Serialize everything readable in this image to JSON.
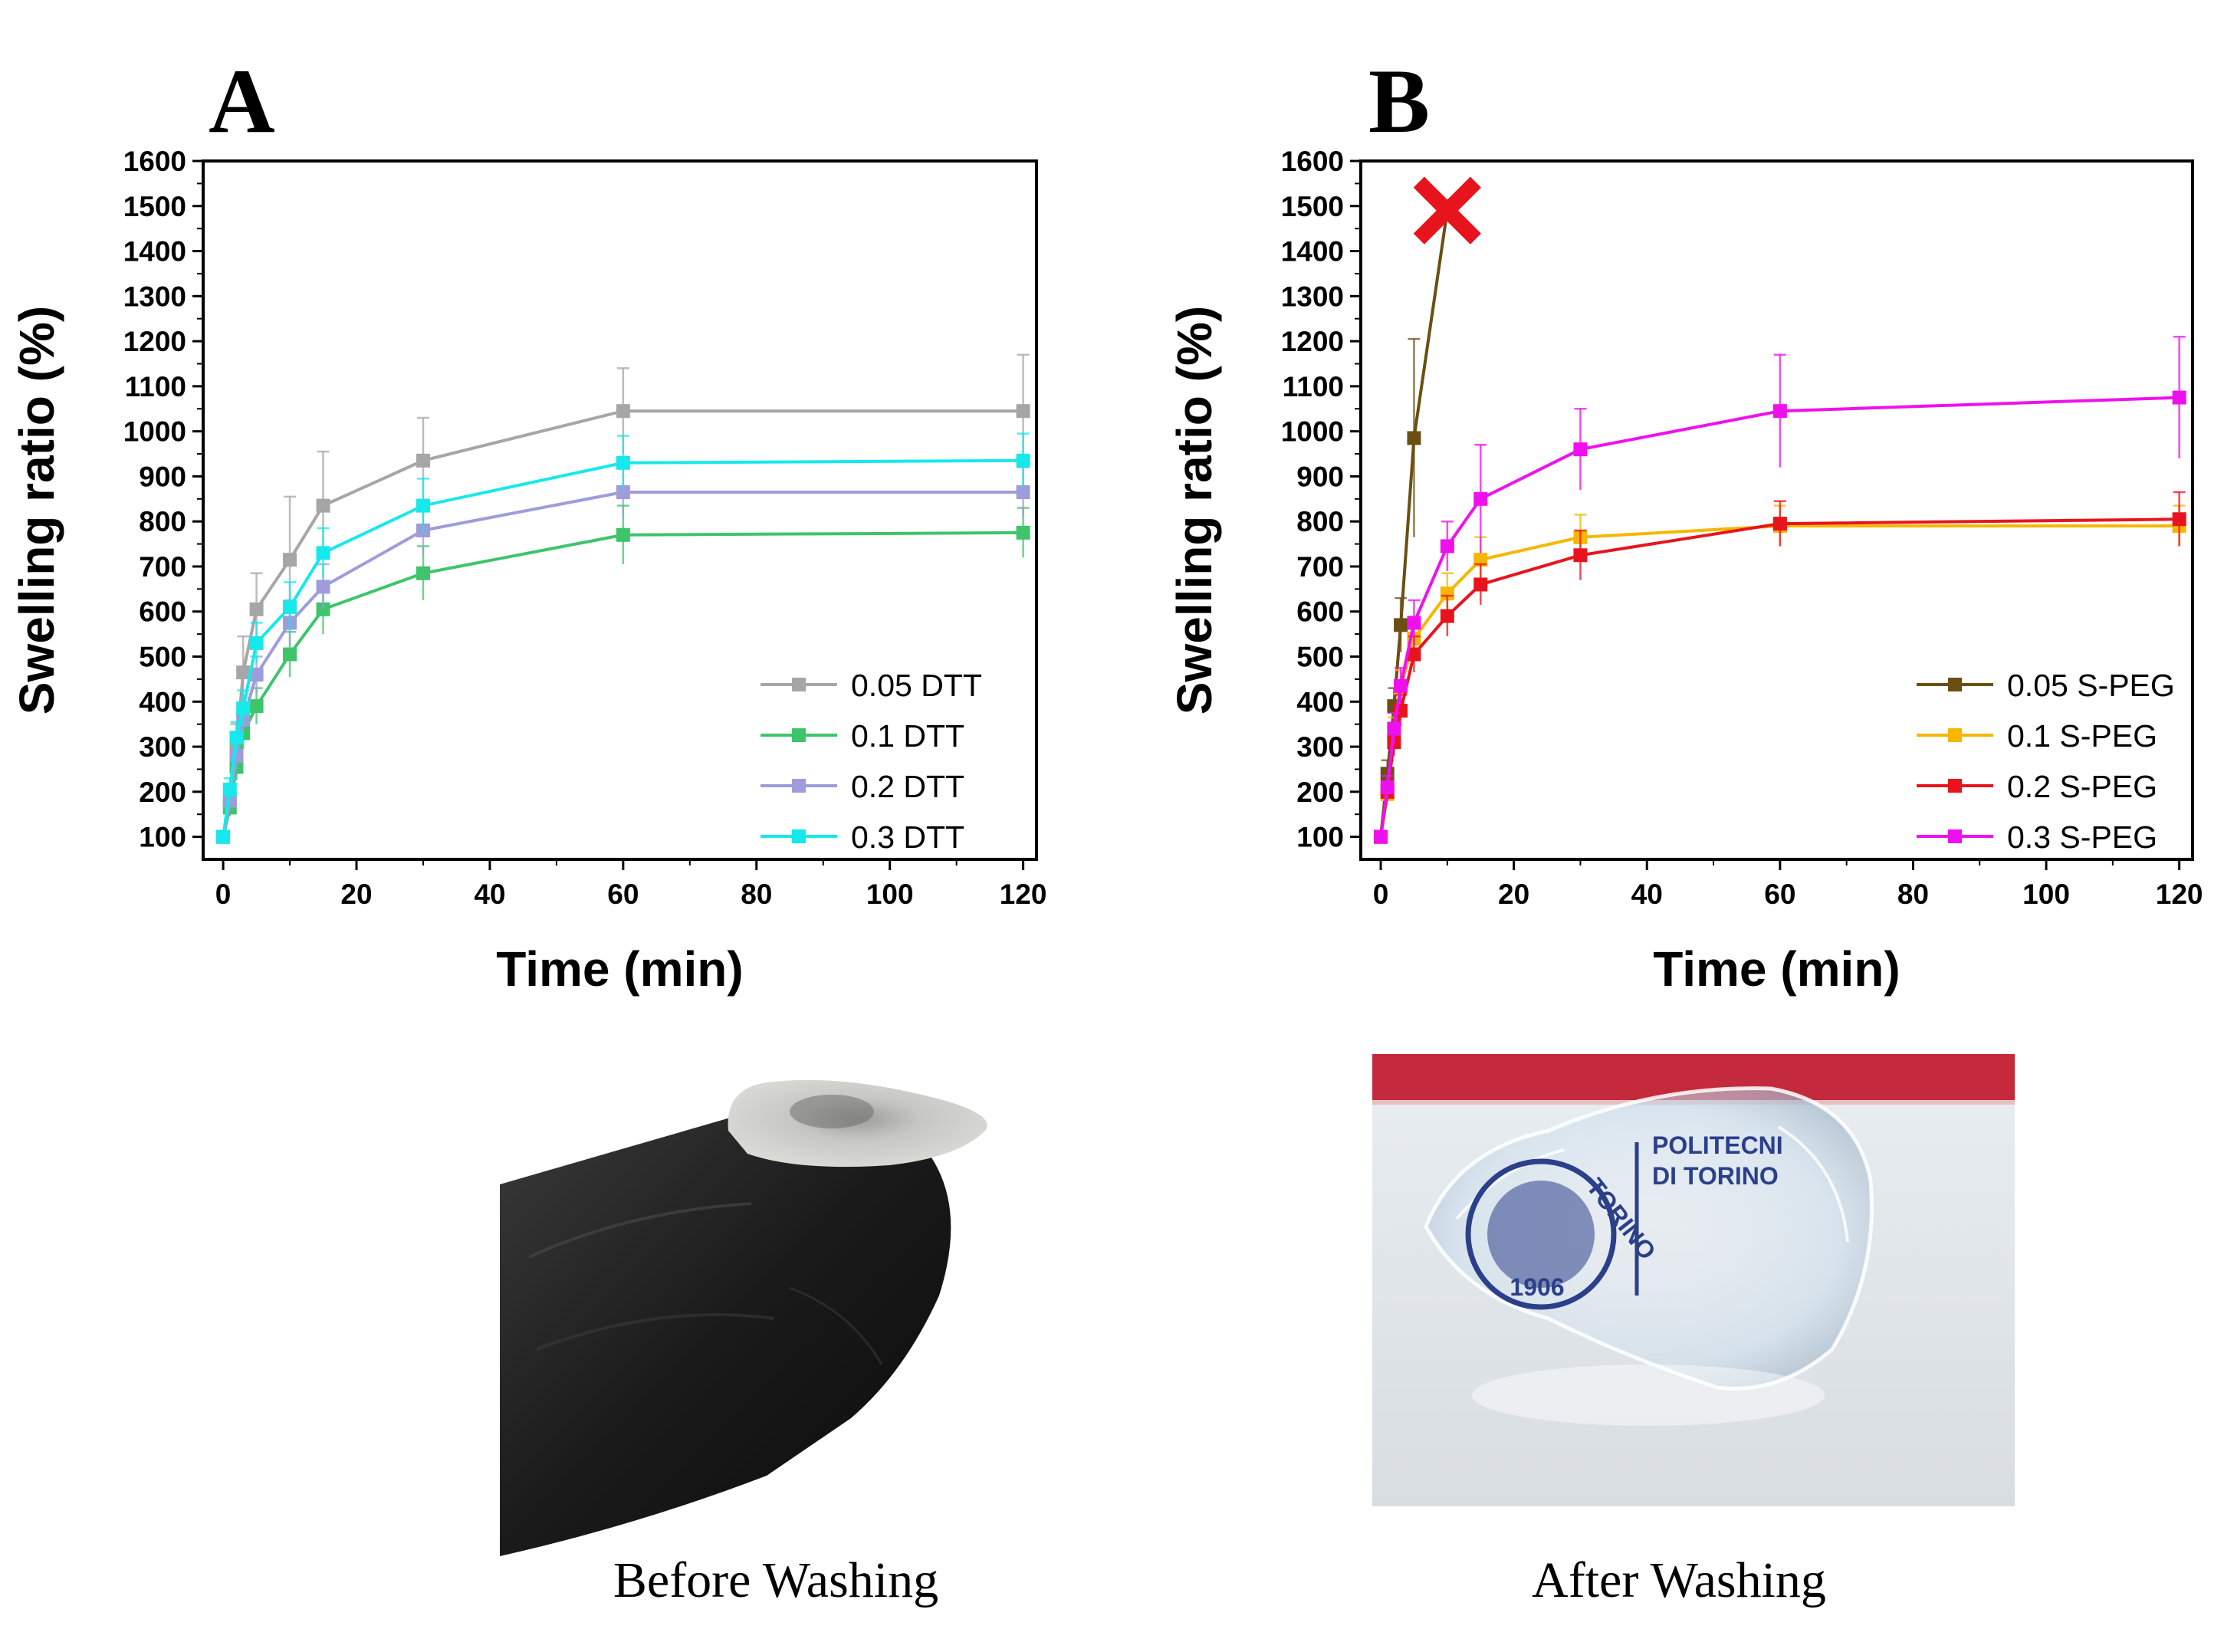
{
  "chart_data": [
    {
      "type": "line",
      "panel": "A",
      "xlabel": "Time (min)",
      "ylabel": "Swelling ratio (%)",
      "xlim": [
        -3,
        122
      ],
      "ylim": [
        50,
        1600
      ],
      "xticks": [
        0,
        20,
        40,
        60,
        80,
        100,
        120
      ],
      "yticks": [
        100,
        200,
        300,
        400,
        500,
        600,
        700,
        800,
        900,
        1000,
        1100,
        1200,
        1300,
        1400,
        1500,
        1600
      ],
      "legend_position": "bottom-right",
      "x": [
        0,
        1,
        2,
        3,
        5,
        10,
        15,
        30,
        60,
        120
      ],
      "series": [
        {
          "name": "0.05 DTT",
          "color": "#a6a6a6",
          "values": [
            100,
            180,
            300,
            465,
            605,
            715,
            835,
            935,
            1045,
            1045
          ],
          "errors": [
            0,
            30,
            50,
            80,
            80,
            140,
            120,
            95,
            95,
            125
          ]
        },
        {
          "name": "0.1 DTT",
          "color": "#3ec46b",
          "values": [
            100,
            165,
            255,
            330,
            390,
            505,
            605,
            685,
            770,
            775
          ],
          "errors": [
            0,
            20,
            30,
            35,
            40,
            50,
            55,
            60,
            65,
            55
          ]
        },
        {
          "name": "0.2 DTT",
          "color": "#9e9cdb",
          "values": [
            100,
            180,
            280,
            360,
            460,
            575,
            655,
            780,
            865,
            865
          ],
          "errors": [
            0,
            20,
            30,
            35,
            40,
            50,
            50,
            55,
            55,
            55
          ]
        },
        {
          "name": "0.3 DTT",
          "color": "#17e8ec",
          "values": [
            100,
            205,
            320,
            385,
            530,
            610,
            730,
            835,
            930,
            935
          ],
          "errors": [
            0,
            25,
            35,
            40,
            45,
            55,
            55,
            60,
            60,
            60
          ]
        }
      ]
    },
    {
      "type": "line",
      "panel": "B",
      "xlabel": "Time (min)",
      "ylabel": "Swelling ratio (%)",
      "xlim": [
        -3,
        122
      ],
      "ylim": [
        50,
        1600
      ],
      "xticks": [
        0,
        20,
        40,
        60,
        80,
        100,
        120
      ],
      "yticks": [
        100,
        200,
        300,
        400,
        500,
        600,
        700,
        800,
        900,
        1000,
        1100,
        1200,
        1300,
        1400,
        1500,
        1600
      ],
      "legend_position": "bottom-right",
      "end_marker": {
        "x": 10,
        "y": 1490,
        "symbol": "x",
        "color": "#e8141d"
      },
      "series": [
        {
          "name": "0.05 S-PEG",
          "color": "#6b4f12",
          "x": [
            0,
            1,
            2,
            3,
            5,
            10
          ],
          "values": [
            100,
            240,
            390,
            570,
            985,
            1490
          ],
          "errors": [
            0,
            30,
            40,
            60,
            220,
            0
          ]
        },
        {
          "name": "0.1 S-PEG",
          "color": "#f5b700",
          "x": [
            0,
            1,
            2,
            3,
            5,
            10,
            15,
            30,
            60,
            120
          ],
          "values": [
            100,
            195,
            330,
            430,
            540,
            640,
            715,
            765,
            790,
            790
          ],
          "errors": [
            0,
            25,
            35,
            40,
            45,
            45,
            50,
            50,
            45,
            45
          ]
        },
        {
          "name": "0.2 S-PEG",
          "color": "#e8141d",
          "x": [
            0,
            1,
            2,
            3,
            5,
            10,
            15,
            30,
            60,
            120
          ],
          "values": [
            100,
            200,
            310,
            380,
            505,
            590,
            660,
            725,
            795,
            805
          ],
          "errors": [
            0,
            20,
            30,
            35,
            40,
            45,
            45,
            55,
            50,
            60
          ]
        },
        {
          "name": "0.3 S-PEG",
          "color": "#ee11ee",
          "x": [
            0,
            1,
            2,
            3,
            5,
            10,
            15,
            30,
            60,
            120
          ],
          "values": [
            100,
            210,
            340,
            435,
            575,
            745,
            850,
            960,
            1045,
            1075
          ],
          "errors": [
            0,
            25,
            35,
            40,
            50,
            55,
            120,
            90,
            125,
            135
          ]
        }
      ]
    }
  ],
  "panels": {
    "a": "A",
    "b": "B"
  },
  "photos": {
    "left_caption": "Before Washing",
    "right_caption": "After Washing",
    "logo_line1": "POLITECNI",
    "logo_line2": "DI TORINO",
    "seal_year": "1906",
    "seal_text": "TORINO"
  }
}
